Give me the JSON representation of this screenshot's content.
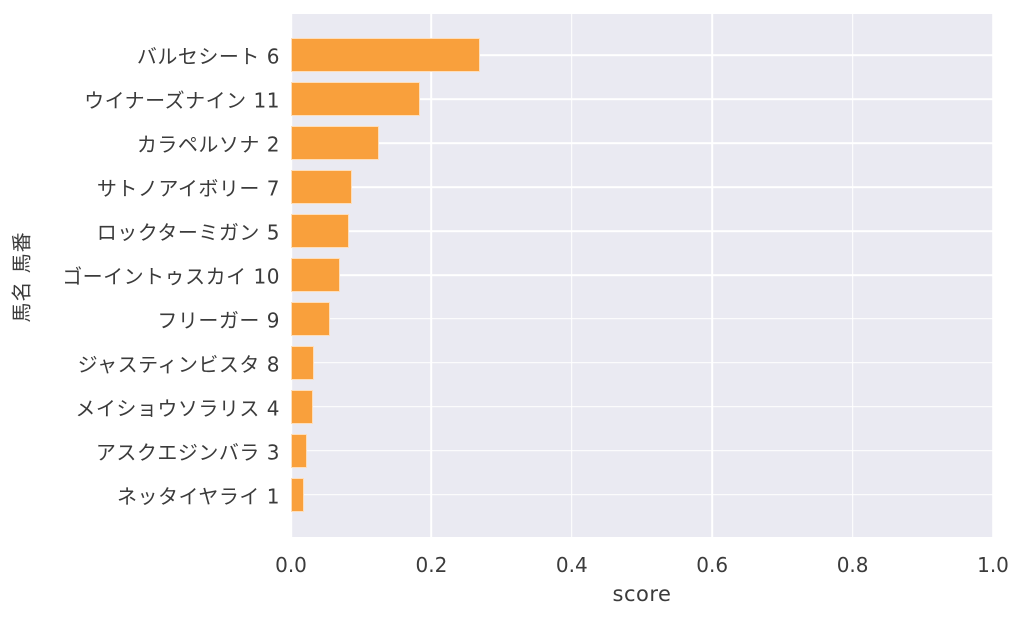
{
  "colors": {
    "bar": "#f9a03c",
    "plot_background": "#eaeaf2",
    "gridline": "#ffffff",
    "text": "#3b3b3b",
    "page_background": "#ffffff"
  },
  "chart_data": {
    "type": "bar",
    "orientation": "horizontal",
    "title": "",
    "xlabel": "score",
    "ylabel": "馬名 馬番",
    "xlim": [
      0.0,
      1.0
    ],
    "xticks": [
      "0.0",
      "0.2",
      "0.4",
      "0.6",
      "0.8",
      "1.0"
    ],
    "grid": true,
    "legend": false,
    "categories": [
      "バルセシート 6",
      "ウイナーズナイン 11",
      "カラペルソナ 2",
      "サトノアイボリー 7",
      "ロックターミガン 5",
      "ゴーイントゥスカイ 10",
      "フリーガー 9",
      "ジャスティンビスタ 8",
      "メイショウソラリス 4",
      "アスクエジンバラ 3",
      "ネッタイヤライ 1"
    ],
    "values": [
      0.269,
      0.184,
      0.126,
      0.087,
      0.083,
      0.07,
      0.055,
      0.033,
      0.032,
      0.023,
      0.018
    ]
  }
}
